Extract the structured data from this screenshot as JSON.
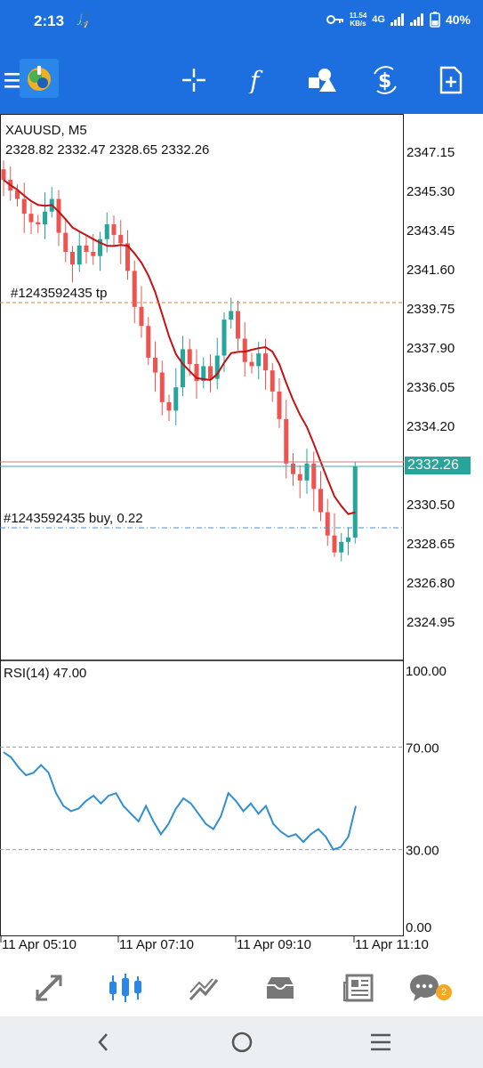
{
  "status": {
    "time": "2:13",
    "net_speed_top": "11.54",
    "net_speed_unit": "KB/s",
    "network": "4G",
    "battery": "40%"
  },
  "chart": {
    "symbol": "XAUUSD, M5",
    "ohlc": "2328.82 2332.47 2328.65 2332.26",
    "current_price": "2332.26",
    "tp_label": "#1243592435 tp",
    "buy_label": "#1243592435 buy, 0.22",
    "price_axis": [
      "2347.15",
      "2345.30",
      "2343.45",
      "2341.60",
      "2339.75",
      "2337.90",
      "2336.05",
      "2334.20",
      "2332.35",
      "2330.50",
      "2328.65",
      "2326.80",
      "2324.95"
    ],
    "rsi_label": "RSI(14) 47.00",
    "rsi_axis": [
      "100.00",
      "70.00",
      "30.00",
      "0.00"
    ],
    "time_axis": [
      "11 Apr 05:10",
      "11 Apr 07:10",
      "11 Apr 09:10",
      "11 Apr 11:10"
    ],
    "colors": {
      "bull": "#26a69a",
      "bear": "#ef5350",
      "ma": "#c41212",
      "rsi": "#2f8fd0",
      "tp_line": "#d9822b",
      "buy_line": "#4a90d9"
    }
  },
  "chart_data": {
    "type": "candlestick",
    "title": "XAUUSD, M5",
    "close_series_approx": [
      2345.8,
      2345.3,
      2344.9,
      2344.2,
      2343.8,
      2343.7,
      2344.3,
      2344.9,
      2343.3,
      2342.4,
      2341.8,
      2342.7,
      2342.4,
      2342.2,
      2343.0,
      2343.7,
      2343.2,
      2342.8,
      2341.5,
      2339.8,
      2338.9,
      2337.4,
      2336.7,
      2335.3,
      2334.9,
      2336.0,
      2337.8,
      2337.1,
      2336.3,
      2337.0,
      2336.4,
      2337.5,
      2339.2,
      2339.6,
      2338.3,
      2337.2,
      2337.0,
      2337.6,
      2336.8,
      2335.8,
      2334.5,
      2332.4,
      2331.9,
      2331.6,
      2332.4,
      2331.2,
      2330.1,
      2329.0,
      2328.2,
      2328.7,
      2328.9,
      2332.26
    ],
    "indicators": [
      "MA (red)",
      "RSI(14) 47.00"
    ],
    "rsi_approx": [
      68,
      66,
      62,
      59,
      60,
      63,
      60,
      52,
      47,
      45,
      46,
      49,
      51,
      48,
      51,
      52,
      47,
      44,
      41,
      47,
      41,
      36,
      40,
      46,
      50,
      48,
      44,
      40,
      38,
      43,
      52,
      49,
      45,
      48,
      44,
      47,
      40,
      37,
      35,
      36,
      33,
      36,
      38,
      35,
      30,
      31,
      35,
      47
    ],
    "ylim": [
      2323.5,
      2348.5
    ],
    "rsi_ylim": [
      0,
      100
    ]
  },
  "nav": {
    "items": [
      "quotes-icon",
      "chart-icon",
      "trade-icon",
      "history-icon",
      "news-icon",
      "messages-icon"
    ],
    "badge": "2"
  }
}
